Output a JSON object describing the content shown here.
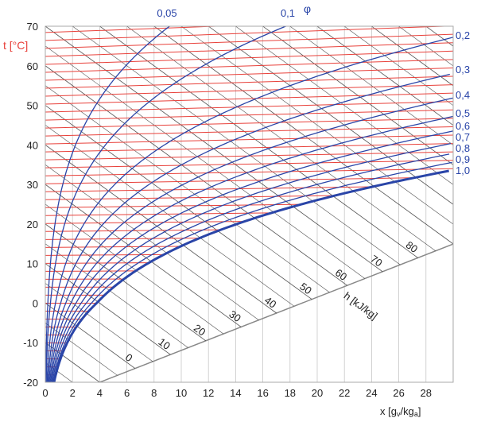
{
  "chart_data": {
    "type": "line",
    "subtype": "Mollier h-x psychrometric diagram",
    "xlabel": "x [g",
    "xlabel_sub1": "v",
    "xlabel_mid": "/kg",
    "xlabel_sub2": "a",
    "xlabel_end": "]",
    "ylabel": "t [°C]",
    "rh_symbol": "φ",
    "enthalpy_label": "h [kJ/kg]",
    "xlim": [
      0,
      30
    ],
    "ylim": [
      -20,
      70
    ],
    "x_ticks": [
      "0",
      "2",
      "4",
      "6",
      "8",
      "10",
      "12",
      "14",
      "16",
      "18",
      "20",
      "22",
      "24",
      "26",
      "28"
    ],
    "y_ticks": [
      "70",
      "60",
      "50",
      "40",
      "30",
      "20",
      "10",
      "0",
      "-10",
      "-20"
    ],
    "isotherm_step_c": 2,
    "enthalpy_step_kj_kg": 5,
    "relative_humidity_curves": [
      {
        "value": 0.05,
        "label": "0,05"
      },
      {
        "value": 0.1,
        "label": "0,1"
      },
      {
        "value": 0.2,
        "label": "0,2"
      },
      {
        "value": 0.3,
        "label": "0,3"
      },
      {
        "value": 0.4,
        "label": "0,4"
      },
      {
        "value": 0.5,
        "label": "0,5"
      },
      {
        "value": 0.6,
        "label": "0,6"
      },
      {
        "value": 0.7,
        "label": "0,7"
      },
      {
        "value": 0.8,
        "label": "0,8"
      },
      {
        "value": 0.9,
        "label": "0,9"
      },
      {
        "value": 1.0,
        "label": "1,0"
      }
    ],
    "enthalpy_labels": [
      0,
      10,
      20,
      30,
      40,
      50,
      60,
      70,
      80
    ],
    "grid": true,
    "colors": {
      "isotherm": "#e8403a",
      "rh": "#2a45a8",
      "enthalpy": "#333333",
      "grid": "#c8c8c8"
    }
  }
}
